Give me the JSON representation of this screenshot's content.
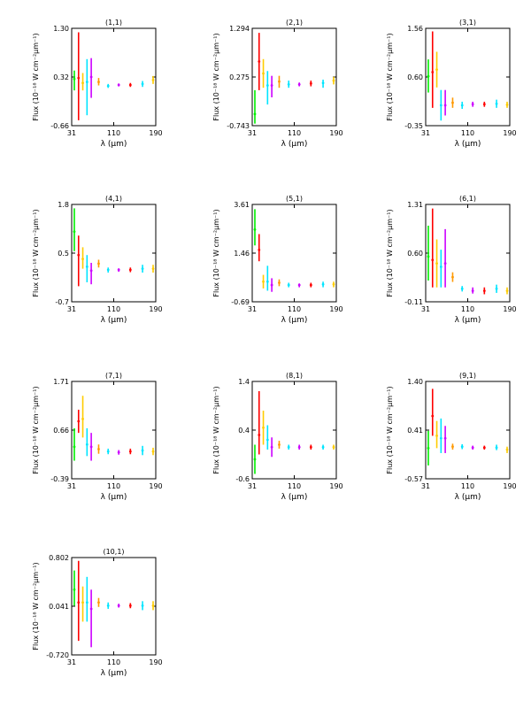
{
  "figure": {
    "xlabel": "λ (μm)",
    "ylabel": "Flux (10⁻¹⁸ W cm⁻²μm⁻¹)"
  },
  "chart_data": [
    {
      "type": "errorbar",
      "title": "(1,1)",
      "xlabel": "λ (μm)",
      "ylabel": "Flux (10⁻¹⁸ W cm⁻²μm⁻¹)",
      "xlim": [
        31,
        190
      ],
      "ylim": [
        -0.66,
        1.3
      ],
      "xticks": [
        "31",
        "110",
        "190"
      ],
      "yticks": [
        "-0.66",
        "0.32",
        "1.30"
      ],
      "points": [
        {
          "x": 36,
          "y": 0.28,
          "lo": 0.05,
          "hi": 0.45,
          "color": "#00ee00"
        },
        {
          "x": 44,
          "y": 0.3,
          "lo": -0.55,
          "hi": 1.22,
          "color": "#ff0000"
        },
        {
          "x": 52,
          "y": 0.2,
          "lo": 0.05,
          "hi": 0.4,
          "color": "#ffcc00"
        },
        {
          "x": 60,
          "y": 0.22,
          "lo": -0.45,
          "hi": 0.68,
          "color": "#00e5ff"
        },
        {
          "x": 68,
          "y": 0.32,
          "lo": -0.1,
          "hi": 0.7,
          "color": "#cc00ff"
        },
        {
          "x": 82,
          "y": 0.22,
          "lo": 0.15,
          "hi": 0.3,
          "color": "#ff9900"
        },
        {
          "x": 100,
          "y": 0.14,
          "lo": 0.1,
          "hi": 0.18,
          "color": "#00e5ff"
        },
        {
          "x": 120,
          "y": 0.16,
          "lo": 0.13,
          "hi": 0.19,
          "color": "#cc00ff"
        },
        {
          "x": 142,
          "y": 0.16,
          "lo": 0.12,
          "hi": 0.2,
          "color": "#ff0000"
        },
        {
          "x": 165,
          "y": 0.18,
          "lo": 0.12,
          "hi": 0.24,
          "color": "#00e5ff"
        },
        {
          "x": 185,
          "y": 0.26,
          "lo": 0.18,
          "hi": 0.34,
          "color": "#ffcc00"
        }
      ]
    },
    {
      "type": "errorbar",
      "title": "(2,1)",
      "xlabel": "λ (μm)",
      "ylabel": "Flux (10⁻¹⁸ W cm⁻²μm⁻¹)",
      "xlim": [
        31,
        190
      ],
      "ylim": [
        -0.743,
        1.294
      ],
      "xticks": [
        "31",
        "110",
        "190"
      ],
      "yticks": [
        "-0.743",
        "0.275",
        "1.294"
      ],
      "points": [
        {
          "x": 36,
          "y": -0.5,
          "lo": -0.7,
          "hi": 0.0,
          "color": "#00ee00"
        },
        {
          "x": 44,
          "y": 0.6,
          "lo": 0.0,
          "hi": 1.2,
          "color": "#ff0000"
        },
        {
          "x": 52,
          "y": 0.35,
          "lo": 0.05,
          "hi": 0.65,
          "color": "#ffcc00"
        },
        {
          "x": 60,
          "y": 0.1,
          "lo": -0.3,
          "hi": 0.4,
          "color": "#00e5ff"
        },
        {
          "x": 68,
          "y": 0.1,
          "lo": -0.15,
          "hi": 0.3,
          "color": "#cc00ff"
        },
        {
          "x": 82,
          "y": 0.18,
          "lo": 0.05,
          "hi": 0.3,
          "color": "#ff9900"
        },
        {
          "x": 100,
          "y": 0.12,
          "lo": 0.05,
          "hi": 0.2,
          "color": "#00e5ff"
        },
        {
          "x": 120,
          "y": 0.12,
          "lo": 0.08,
          "hi": 0.16,
          "color": "#cc00ff"
        },
        {
          "x": 142,
          "y": 0.14,
          "lo": 0.08,
          "hi": 0.2,
          "color": "#ff0000"
        },
        {
          "x": 165,
          "y": 0.15,
          "lo": 0.05,
          "hi": 0.22,
          "color": "#00e5ff"
        },
        {
          "x": 185,
          "y": 0.2,
          "lo": 0.12,
          "hi": 0.28,
          "color": "#ffcc00"
        }
      ]
    },
    {
      "type": "errorbar",
      "title": "(3,1)",
      "xlabel": "λ (μm)",
      "ylabel": "Flux (10⁻¹⁸ W cm⁻²μm⁻¹)",
      "xlim": [
        31,
        190
      ],
      "ylim": [
        -0.35,
        1.56
      ],
      "xticks": [
        "31",
        "110",
        "190"
      ],
      "yticks": [
        "-0.35",
        "0.60",
        "1.56"
      ],
      "points": [
        {
          "x": 36,
          "y": 0.62,
          "lo": 0.3,
          "hi": 0.95,
          "color": "#00ee00"
        },
        {
          "x": 44,
          "y": 0.7,
          "lo": 0.0,
          "hi": 1.5,
          "color": "#ff0000"
        },
        {
          "x": 52,
          "y": 0.75,
          "lo": 0.4,
          "hi": 1.1,
          "color": "#ffcc00"
        },
        {
          "x": 60,
          "y": 0.05,
          "lo": -0.25,
          "hi": 0.35,
          "color": "#00e5ff"
        },
        {
          "x": 68,
          "y": 0.05,
          "lo": -0.15,
          "hi": 0.35,
          "color": "#cc00ff"
        },
        {
          "x": 82,
          "y": 0.1,
          "lo": 0.0,
          "hi": 0.2,
          "color": "#ff9900"
        },
        {
          "x": 100,
          "y": 0.05,
          "lo": -0.02,
          "hi": 0.12,
          "color": "#00e5ff"
        },
        {
          "x": 120,
          "y": 0.07,
          "lo": 0.02,
          "hi": 0.12,
          "color": "#cc00ff"
        },
        {
          "x": 142,
          "y": 0.07,
          "lo": 0.02,
          "hi": 0.12,
          "color": "#ff0000"
        },
        {
          "x": 165,
          "y": 0.08,
          "lo": 0.0,
          "hi": 0.16,
          "color": "#00e5ff"
        },
        {
          "x": 185,
          "y": 0.06,
          "lo": 0.0,
          "hi": 0.12,
          "color": "#ffcc00"
        }
      ]
    },
    {
      "type": "errorbar",
      "title": "(4,1)",
      "xlabel": "λ (μm)",
      "ylabel": "Flux (10⁻¹⁸ W cm⁻²μm⁻¹)",
      "xlim": [
        31,
        190
      ],
      "ylim": [
        -0.7,
        1.8
      ],
      "xticks": [
        "31",
        "110",
        "190"
      ],
      "yticks": [
        "-0.7",
        "0.5",
        "1.8"
      ],
      "points": [
        {
          "x": 36,
          "y": 1.1,
          "lo": 0.6,
          "hi": 1.7,
          "color": "#00ee00"
        },
        {
          "x": 44,
          "y": 0.5,
          "lo": -0.3,
          "hi": 1.0,
          "color": "#ff0000"
        },
        {
          "x": 52,
          "y": 0.4,
          "lo": 0.15,
          "hi": 0.7,
          "color": "#ffcc00"
        },
        {
          "x": 60,
          "y": 0.2,
          "lo": -0.2,
          "hi": 0.5,
          "color": "#00e5ff"
        },
        {
          "x": 68,
          "y": 0.1,
          "lo": -0.25,
          "hi": 0.3,
          "color": "#cc00ff"
        },
        {
          "x": 82,
          "y": 0.28,
          "lo": 0.18,
          "hi": 0.38,
          "color": "#ff9900"
        },
        {
          "x": 100,
          "y": 0.12,
          "lo": 0.05,
          "hi": 0.18,
          "color": "#00e5ff"
        },
        {
          "x": 120,
          "y": 0.12,
          "lo": 0.07,
          "hi": 0.16,
          "color": "#cc00ff"
        },
        {
          "x": 142,
          "y": 0.12,
          "lo": 0.06,
          "hi": 0.18,
          "color": "#ff0000"
        },
        {
          "x": 165,
          "y": 0.15,
          "lo": 0.05,
          "hi": 0.25,
          "color": "#00e5ff"
        },
        {
          "x": 185,
          "y": 0.15,
          "lo": 0.05,
          "hi": 0.25,
          "color": "#ffcc00"
        }
      ]
    },
    {
      "type": "errorbar",
      "title": "(5,1)",
      "xlabel": "λ (μm)",
      "ylabel": "Flux (10⁻¹⁸ W cm⁻²μm⁻¹)",
      "xlim": [
        31,
        190
      ],
      "ylim": [
        -0.69,
        3.61
      ],
      "xticks": [
        "31",
        "110",
        "190"
      ],
      "yticks": [
        "-0.69",
        "1.46",
        "3.61"
      ],
      "points": [
        {
          "x": 36,
          "y": 2.5,
          "lo": 1.8,
          "hi": 3.4,
          "color": "#00ee00"
        },
        {
          "x": 44,
          "y": 1.6,
          "lo": 1.1,
          "hi": 2.3,
          "color": "#ff0000"
        },
        {
          "x": 52,
          "y": 0.2,
          "lo": -0.1,
          "hi": 0.5,
          "color": "#ffcc00"
        },
        {
          "x": 60,
          "y": 0.2,
          "lo": -0.2,
          "hi": 0.9,
          "color": "#00e5ff"
        },
        {
          "x": 68,
          "y": 0.05,
          "lo": -0.25,
          "hi": 0.35,
          "color": "#cc00ff"
        },
        {
          "x": 82,
          "y": 0.15,
          "lo": 0.0,
          "hi": 0.3,
          "color": "#ff9900"
        },
        {
          "x": 100,
          "y": 0.05,
          "lo": -0.05,
          "hi": 0.15,
          "color": "#00e5ff"
        },
        {
          "x": 120,
          "y": 0.05,
          "lo": -0.05,
          "hi": 0.12,
          "color": "#cc00ff"
        },
        {
          "x": 142,
          "y": 0.05,
          "lo": -0.05,
          "hi": 0.15,
          "color": "#ff0000"
        },
        {
          "x": 165,
          "y": 0.08,
          "lo": -0.05,
          "hi": 0.2,
          "color": "#00e5ff"
        },
        {
          "x": 185,
          "y": 0.08,
          "lo": -0.05,
          "hi": 0.2,
          "color": "#ffcc00"
        }
      ]
    },
    {
      "type": "errorbar",
      "title": "(6,1)",
      "xlabel": "λ (μm)",
      "ylabel": "Flux (10⁻¹⁸ W cm⁻²μm⁻¹)",
      "xlim": [
        31,
        190
      ],
      "ylim": [
        -0.11,
        1.31
      ],
      "xticks": [
        "31",
        "110",
        "190"
      ],
      "yticks": [
        "-0.11",
        "0.60",
        "1.31"
      ],
      "points": [
        {
          "x": 36,
          "y": 0.55,
          "lo": 0.2,
          "hi": 1.0,
          "color": "#00ee00"
        },
        {
          "x": 44,
          "y": 0.5,
          "lo": 0.1,
          "hi": 1.25,
          "color": "#ff0000"
        },
        {
          "x": 52,
          "y": 0.45,
          "lo": 0.1,
          "hi": 0.8,
          "color": "#ffcc00"
        },
        {
          "x": 60,
          "y": 0.4,
          "lo": 0.1,
          "hi": 0.65,
          "color": "#00e5ff"
        },
        {
          "x": 68,
          "y": 0.45,
          "lo": 0.1,
          "hi": 0.95,
          "color": "#cc00ff"
        },
        {
          "x": 82,
          "y": 0.25,
          "lo": 0.18,
          "hi": 0.32,
          "color": "#ff9900"
        },
        {
          "x": 100,
          "y": 0.08,
          "lo": 0.04,
          "hi": 0.12,
          "color": "#00e5ff"
        },
        {
          "x": 120,
          "y": 0.05,
          "lo": 0.01,
          "hi": 0.1,
          "color": "#cc00ff"
        },
        {
          "x": 142,
          "y": 0.05,
          "lo": 0.0,
          "hi": 0.1,
          "color": "#ff0000"
        },
        {
          "x": 165,
          "y": 0.08,
          "lo": 0.02,
          "hi": 0.14,
          "color": "#00e5ff"
        },
        {
          "x": 185,
          "y": 0.05,
          "lo": 0.0,
          "hi": 0.1,
          "color": "#ffcc00"
        }
      ]
    },
    {
      "type": "errorbar",
      "title": "(7,1)",
      "xlabel": "λ (μm)",
      "ylabel": "Flux (10⁻¹⁸ W cm⁻²μm⁻¹)",
      "xlim": [
        31,
        190
      ],
      "ylim": [
        -0.39,
        1.71
      ],
      "xticks": [
        "31",
        "110",
        "190"
      ],
      "yticks": [
        "-0.39",
        "0.66",
        "1.71"
      ],
      "points": [
        {
          "x": 36,
          "y": 0.3,
          "lo": 0.0,
          "hi": 0.7,
          "color": "#00ee00"
        },
        {
          "x": 44,
          "y": 0.85,
          "lo": 0.6,
          "hi": 1.1,
          "color": "#ff0000"
        },
        {
          "x": 52,
          "y": 0.9,
          "lo": 0.5,
          "hi": 1.4,
          "color": "#ffcc00"
        },
        {
          "x": 60,
          "y": 0.35,
          "lo": 0.1,
          "hi": 0.7,
          "color": "#00e5ff"
        },
        {
          "x": 68,
          "y": 0.3,
          "lo": 0.0,
          "hi": 0.6,
          "color": "#cc00ff"
        },
        {
          "x": 82,
          "y": 0.25,
          "lo": 0.15,
          "hi": 0.35,
          "color": "#ff9900"
        },
        {
          "x": 100,
          "y": 0.2,
          "lo": 0.14,
          "hi": 0.26,
          "color": "#00e5ff"
        },
        {
          "x": 120,
          "y": 0.18,
          "lo": 0.13,
          "hi": 0.23,
          "color": "#cc00ff"
        },
        {
          "x": 142,
          "y": 0.2,
          "lo": 0.14,
          "hi": 0.26,
          "color": "#ff0000"
        },
        {
          "x": 165,
          "y": 0.22,
          "lo": 0.12,
          "hi": 0.32,
          "color": "#00e5ff"
        },
        {
          "x": 185,
          "y": 0.2,
          "lo": 0.12,
          "hi": 0.28,
          "color": "#ffcc00"
        }
      ]
    },
    {
      "type": "errorbar",
      "title": "(8,1)",
      "xlabel": "λ (μm)",
      "ylabel": "Flux (10⁻¹⁸ W cm⁻²μm⁻¹)",
      "xlim": [
        31,
        190
      ],
      "ylim": [
        -0.6,
        1.4
      ],
      "xticks": [
        "31",
        "110",
        "190"
      ],
      "yticks": [
        "-0.6",
        "0.4",
        "1.4"
      ],
      "points": [
        {
          "x": 36,
          "y": -0.2,
          "lo": -0.5,
          "hi": 0.1,
          "color": "#00ee00"
        },
        {
          "x": 44,
          "y": 0.3,
          "lo": -0.1,
          "hi": 1.2,
          "color": "#ff0000"
        },
        {
          "x": 52,
          "y": 0.45,
          "lo": 0.1,
          "hi": 0.8,
          "color": "#ffcc00"
        },
        {
          "x": 60,
          "y": 0.2,
          "lo": 0.0,
          "hi": 0.5,
          "color": "#00e5ff"
        },
        {
          "x": 68,
          "y": 0.05,
          "lo": -0.15,
          "hi": 0.25,
          "color": "#cc00ff"
        },
        {
          "x": 82,
          "y": 0.1,
          "lo": 0.02,
          "hi": 0.18,
          "color": "#ff9900"
        },
        {
          "x": 100,
          "y": 0.05,
          "lo": 0.0,
          "hi": 0.1,
          "color": "#00e5ff"
        },
        {
          "x": 120,
          "y": 0.05,
          "lo": 0.0,
          "hi": 0.1,
          "color": "#cc00ff"
        },
        {
          "x": 142,
          "y": 0.05,
          "lo": 0.0,
          "hi": 0.1,
          "color": "#ff0000"
        },
        {
          "x": 165,
          "y": 0.05,
          "lo": 0.0,
          "hi": 0.1,
          "color": "#00e5ff"
        },
        {
          "x": 185,
          "y": 0.05,
          "lo": 0.0,
          "hi": 0.1,
          "color": "#ffcc00"
        }
      ]
    },
    {
      "type": "errorbar",
      "title": "(9,1)",
      "xlabel": "λ (μm)",
      "ylabel": "Flux (10⁻¹⁸ W cm⁻²μm⁻¹)",
      "xlim": [
        31,
        190
      ],
      "ylim": [
        -0.57,
        1.4
      ],
      "xticks": [
        "31",
        "110",
        "190"
      ],
      "yticks": [
        "-0.57",
        "0.41",
        "1.40"
      ],
      "points": [
        {
          "x": 36,
          "y": 0.05,
          "lo": -0.3,
          "hi": 0.4,
          "color": "#00ee00"
        },
        {
          "x": 44,
          "y": 0.7,
          "lo": 0.3,
          "hi": 1.25,
          "color": "#ff0000"
        },
        {
          "x": 52,
          "y": 0.3,
          "lo": 0.05,
          "hi": 0.6,
          "color": "#ffcc00"
        },
        {
          "x": 60,
          "y": 0.25,
          "lo": -0.05,
          "hi": 0.65,
          "color": "#00e5ff"
        },
        {
          "x": 68,
          "y": 0.25,
          "lo": -0.05,
          "hi": 0.5,
          "color": "#cc00ff"
        },
        {
          "x": 82,
          "y": 0.08,
          "lo": 0.02,
          "hi": 0.14,
          "color": "#ff9900"
        },
        {
          "x": 100,
          "y": 0.08,
          "lo": 0.03,
          "hi": 0.13,
          "color": "#00e5ff"
        },
        {
          "x": 120,
          "y": 0.06,
          "lo": 0.02,
          "hi": 0.1,
          "color": "#cc00ff"
        },
        {
          "x": 142,
          "y": 0.06,
          "lo": 0.02,
          "hi": 0.1,
          "color": "#ff0000"
        },
        {
          "x": 165,
          "y": 0.06,
          "lo": 0.01,
          "hi": 0.12,
          "color": "#00e5ff"
        },
        {
          "x": 185,
          "y": 0.02,
          "lo": -0.05,
          "hi": 0.08,
          "color": "#ffcc00"
        }
      ]
    },
    {
      "type": "errorbar",
      "title": "(10,1)",
      "xlabel": "λ (μm)",
      "ylabel": "Flux (10⁻¹⁸ W cm⁻²μm⁻¹)",
      "xlim": [
        31,
        190
      ],
      "ylim": [
        -0.72,
        0.802
      ],
      "xticks": [
        "31",
        "110",
        "190"
      ],
      "yticks": [
        "-0.720",
        "0.041",
        "0.802"
      ],
      "points": [
        {
          "x": 36,
          "y": 0.3,
          "lo": 0.05,
          "hi": 0.6,
          "color": "#00ee00"
        },
        {
          "x": 44,
          "y": 0.1,
          "lo": -0.5,
          "hi": 0.75,
          "color": "#ff0000"
        },
        {
          "x": 52,
          "y": 0.1,
          "lo": -0.2,
          "hi": 0.35,
          "color": "#ffcc00"
        },
        {
          "x": 60,
          "y": 0.1,
          "lo": -0.2,
          "hi": 0.5,
          "color": "#00e5ff"
        },
        {
          "x": 68,
          "y": 0.0,
          "lo": -0.6,
          "hi": 0.3,
          "color": "#cc00ff"
        },
        {
          "x": 82,
          "y": 0.1,
          "lo": 0.03,
          "hi": 0.17,
          "color": "#ff9900"
        },
        {
          "x": 100,
          "y": 0.05,
          "lo": 0.0,
          "hi": 0.1,
          "color": "#00e5ff"
        },
        {
          "x": 120,
          "y": 0.05,
          "lo": 0.02,
          "hi": 0.08,
          "color": "#cc00ff"
        },
        {
          "x": 142,
          "y": 0.05,
          "lo": 0.01,
          "hi": 0.09,
          "color": "#ff0000"
        },
        {
          "x": 165,
          "y": 0.05,
          "lo": -0.02,
          "hi": 0.12,
          "color": "#00e5ff"
        },
        {
          "x": 185,
          "y": 0.05,
          "lo": -0.02,
          "hi": 0.12,
          "color": "#ffcc00"
        }
      ]
    }
  ]
}
